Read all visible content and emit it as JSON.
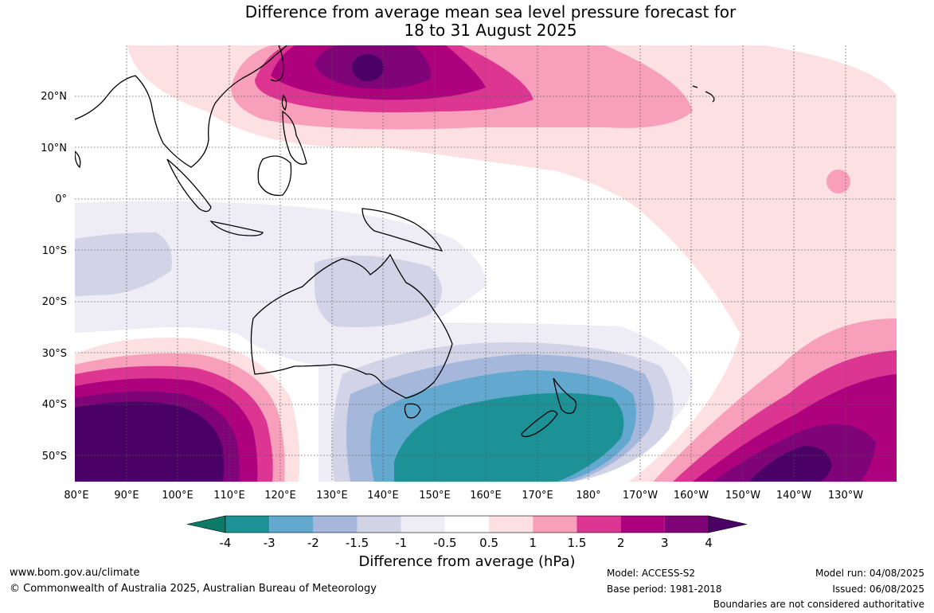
{
  "title": {
    "line1": "Difference from average mean sea level pressure forecast for",
    "line2": "18 to 31 August 2025"
  },
  "map": {
    "lat_labels": [
      "20°N",
      "10°N",
      "0°",
      "10°S",
      "20°S",
      "30°S",
      "40°S",
      "50°S"
    ],
    "lon_labels": [
      "80°E",
      "90°E",
      "100°E",
      "110°E",
      "120°E",
      "130°E",
      "140°E",
      "150°E",
      "160°E",
      "170°E",
      "180°",
      "170°W",
      "160°W",
      "150°W",
      "140°W",
      "130°W"
    ],
    "region": "Australia, Indo-Pacific and Southern Ocean",
    "extent": {
      "lon": [
        80,
        240
      ],
      "lat": [
        -55,
        30
      ]
    },
    "anomaly_features": [
      {
        "name": "NW Pacific high anomaly",
        "max_hPa": 4,
        "approx_center": [
          138,
          26
        ]
      },
      {
        "name": "SW Indian Ocean high anomaly",
        "max_hPa": 4,
        "approx_center": [
          95,
          -47
        ]
      },
      {
        "name": "SE Pacific high anomaly",
        "max_hPa": 4,
        "approx_center": [
          216,
          -52
        ]
      },
      {
        "name": "Tasman Sea low anomaly",
        "min_hPa": -3,
        "approx_center": [
          165,
          -45
        ]
      }
    ]
  },
  "colorbar": {
    "levels": [
      "-4",
      "-3",
      "-2",
      "-1.5",
      "-1",
      "-0.5",
      "0.5",
      "1",
      "1.5",
      "2",
      "3",
      "4"
    ],
    "colors": [
      "#0b7a66",
      "#1c9196",
      "#62a8cf",
      "#a5b8db",
      "#d2d3e6",
      "#eeedf5",
      "#ffffff",
      "#fde0e1",
      "#f8a0bb",
      "#dd3592",
      "#ad017e",
      "#7e0478",
      "#4b0066"
    ],
    "title": "Difference from average (hPa)"
  },
  "footer": {
    "website": "www.bom.gov.au/climate",
    "copyright": "© Commonwealth of Australia 2025, Australian Bureau of Meteorology",
    "model": "Model: ACCESS-S2",
    "base_period": "Base period: 1981-2018",
    "model_run": "Model run: 04/08/2025",
    "issued": "Issued: 06/08/2025",
    "disclaimer": "Boundaries are not considered authoritative"
  }
}
